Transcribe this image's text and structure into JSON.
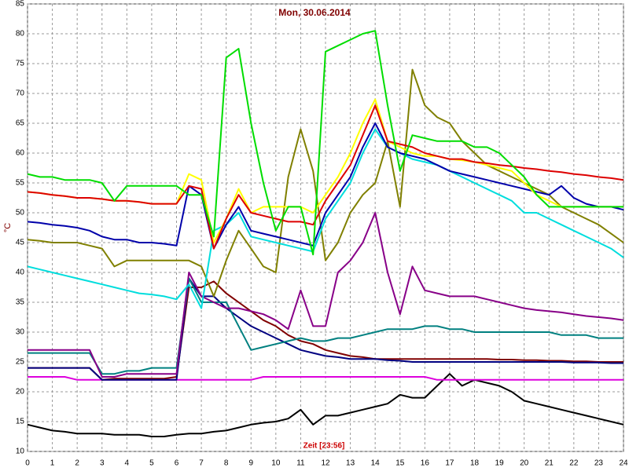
{
  "chart_data": {
    "type": "line",
    "title": "Mon, 30.06.2014",
    "y_label": "°C",
    "x_label": "Zeit [23:56]",
    "xlim": [
      0,
      24
    ],
    "ylim": [
      10,
      85
    ],
    "xticks": [
      0,
      1,
      2,
      3,
      4,
      5,
      6,
      7,
      8,
      9,
      10,
      11,
      12,
      13,
      14,
      15,
      16,
      17,
      18,
      19,
      20,
      21,
      22,
      23,
      24
    ],
    "yticks": [
      10,
      15,
      20,
      25,
      30,
      35,
      40,
      45,
      50,
      55,
      60,
      65,
      70,
      75,
      80,
      85
    ],
    "grid": true,
    "x": [
      0,
      0.5,
      1,
      1.5,
      2,
      2.5,
      3,
      3.5,
      4,
      4.5,
      5,
      5.5,
      6,
      6.5,
      7,
      7.5,
      8,
      8.5,
      9,
      9.5,
      10,
      10.5,
      11,
      11.5,
      12,
      12.5,
      13,
      13.5,
      14,
      14.5,
      15,
      15.5,
      16,
      16.5,
      17,
      17.5,
      18,
      18.5,
      19,
      19.5,
      20,
      20.5,
      21,
      21.5,
      22,
      22.5,
      23,
      23.5,
      24
    ],
    "series": [
      {
        "color": "#000000",
        "values": [
          14.5,
          14,
          13.5,
          13.3,
          13,
          13,
          13,
          12.8,
          12.8,
          12.8,
          12.5,
          12.5,
          12.8,
          13,
          13,
          13.3,
          13.5,
          14,
          14.5,
          14.8,
          15,
          15.5,
          17,
          14.5,
          16,
          16,
          16.5,
          17,
          17.5,
          18,
          19.5,
          19,
          19,
          21,
          23,
          21,
          22,
          21.5,
          21,
          20,
          18.5,
          18,
          17.5,
          17,
          16.5,
          16,
          15.5,
          15,
          14.5
        ]
      },
      {
        "color": "#dd00dd",
        "values": [
          22.5,
          22.5,
          22.5,
          22.5,
          22,
          22,
          22,
          22,
          22,
          22,
          22,
          22,
          22,
          22,
          22,
          22,
          22,
          22,
          22,
          22.5,
          22.5,
          22.5,
          22.5,
          22.5,
          22.5,
          22.5,
          22.5,
          22.5,
          22.5,
          22.5,
          22.5,
          22.5,
          22.5,
          22,
          22,
          22,
          22,
          22,
          22,
          22,
          22,
          22,
          22,
          22,
          22,
          22,
          22,
          22,
          22
        ]
      },
      {
        "color": "#800000",
        "values": [
          24,
          24,
          24,
          24,
          24,
          24,
          22,
          22.2,
          22.2,
          22.2,
          22.2,
          22.2,
          22.5,
          37.5,
          37.5,
          38.5,
          36.5,
          35,
          33.5,
          32,
          31,
          29.5,
          28.5,
          28,
          27,
          26.5,
          26,
          25.8,
          25.5,
          25.5,
          25.5,
          25.5,
          25.5,
          25.5,
          25.5,
          25.5,
          25.5,
          25.5,
          25.4,
          25.4,
          25.3,
          25.3,
          25.2,
          25.2,
          25.1,
          25.1,
          25,
          25,
          25
        ]
      },
      {
        "color": "#000080",
        "values": [
          24,
          24,
          24,
          24,
          24,
          24,
          22,
          22,
          22,
          22,
          22,
          22,
          22,
          39,
          36,
          36,
          34,
          32.5,
          31,
          30,
          29,
          28,
          27,
          26.5,
          26,
          25.8,
          25.5,
          25.5,
          25.5,
          25.3,
          25.2,
          25,
          25,
          25,
          25,
          25,
          25,
          25,
          25,
          25,
          25,
          25,
          25,
          25,
          24.9,
          24.9,
          24.9,
          24.8,
          24.8
        ]
      },
      {
        "color": "#008080",
        "values": [
          26.5,
          26.5,
          26.5,
          26.5,
          26.5,
          26.5,
          23,
          23,
          23.5,
          23.5,
          24,
          24,
          24,
          39,
          35,
          35,
          35,
          31,
          27,
          27.5,
          28,
          28.5,
          29,
          28.5,
          28.5,
          29,
          29,
          29.5,
          30,
          30.5,
          30.5,
          30.5,
          31,
          31,
          30.5,
          30.5,
          30,
          30,
          30,
          30,
          30,
          30,
          30,
          29.5,
          29.5,
          29.5,
          29,
          29,
          29
        ]
      },
      {
        "color": "#880088",
        "values": [
          27,
          27,
          27,
          27,
          27,
          27,
          22.5,
          22.5,
          23,
          23,
          23,
          23,
          23,
          40,
          36,
          35,
          34,
          34,
          33.5,
          33,
          32,
          30.5,
          37,
          31,
          31,
          40,
          42,
          45,
          50,
          40,
          33,
          41,
          37,
          36.5,
          36,
          36,
          36,
          35.5,
          35,
          34.5,
          34,
          33.7,
          33.5,
          33.3,
          33,
          32.7,
          32.5,
          32.3,
          32
        ]
      },
      {
        "color": "#808000",
        "values": [
          45.5,
          45.3,
          45,
          45,
          45,
          44.5,
          44,
          41,
          42,
          42,
          42,
          42,
          42,
          42,
          41,
          36,
          42,
          47,
          44,
          41,
          40,
          56,
          64,
          57,
          42,
          45,
          50,
          53,
          55,
          62,
          51,
          74,
          68,
          66,
          65,
          62,
          60,
          58,
          57,
          56,
          55,
          54,
          53,
          51,
          50,
          49,
          48,
          46.5,
          45
        ]
      },
      {
        "color": "#00dddd",
        "values": [
          41,
          40.5,
          40,
          39.5,
          39,
          38.5,
          38,
          37.5,
          37,
          36.5,
          36.3,
          36,
          35.5,
          38,
          34,
          47,
          48,
          50,
          46,
          45.5,
          45,
          44.5,
          44,
          43.5,
          49,
          52,
          55,
          60,
          64,
          61,
          60,
          59,
          58.5,
          58,
          57,
          56,
          55,
          54,
          53,
          52,
          50,
          50,
          49,
          48,
          47,
          46,
          45,
          44,
          42.5
        ]
      },
      {
        "color": "#0000aa",
        "values": [
          48.5,
          48.3,
          48,
          47.8,
          47.5,
          47,
          46,
          45.5,
          45.5,
          45,
          45,
          44.8,
          44.5,
          54.5,
          53,
          44,
          48,
          51,
          47,
          46.5,
          46,
          45.5,
          45,
          44.5,
          50,
          53,
          56,
          61,
          65,
          61,
          60,
          59.5,
          59,
          58,
          57,
          56.5,
          56,
          55.5,
          55,
          54.5,
          54,
          53.5,
          53,
          54.5,
          52.5,
          51.5,
          51,
          51,
          50.5
        ]
      },
      {
        "color": "#ffff00",
        "values": [
          53.5,
          53.3,
          53,
          52.8,
          52.5,
          52.5,
          52.3,
          52,
          52,
          51.8,
          51.5,
          51.5,
          51.5,
          56.5,
          55.5,
          45,
          49,
          54,
          50,
          51,
          51,
          51,
          51,
          50,
          53,
          56,
          60,
          65,
          69,
          62,
          61,
          60,
          59.5,
          59.5,
          59,
          58.8,
          58.5,
          58,
          57.5,
          57,
          55,
          53,
          52,
          51,
          51,
          51,
          51,
          51,
          51
        ]
      },
      {
        "color": "#dd0000",
        "values": [
          53.5,
          53.3,
          53,
          52.8,
          52.5,
          52.5,
          52.3,
          52,
          52,
          51.8,
          51.5,
          51.5,
          51.5,
          54.5,
          54,
          44,
          49,
          53,
          50,
          49.5,
          49,
          48.5,
          48.5,
          48,
          52,
          55,
          58,
          63,
          68,
          62,
          61.5,
          61,
          60,
          59.5,
          59,
          59,
          58.5,
          58.3,
          58,
          57.8,
          57.5,
          57.3,
          57,
          56.8,
          56.5,
          56.3,
          56,
          55.8,
          55.5
        ]
      },
      {
        "color": "#00dd00",
        "values": [
          56.5,
          56,
          56,
          55.5,
          55.5,
          55.5,
          55,
          52,
          54.5,
          54.5,
          54.5,
          54.5,
          54.5,
          53,
          53,
          46,
          76,
          77.5,
          65,
          55,
          47,
          51,
          51,
          43,
          77,
          78,
          79,
          80,
          80.5,
          68,
          57,
          63,
          62.5,
          62,
          62,
          62,
          61,
          61,
          60,
          58,
          56,
          53,
          51,
          51,
          51,
          51,
          51,
          51,
          51
        ]
      }
    ]
  }
}
